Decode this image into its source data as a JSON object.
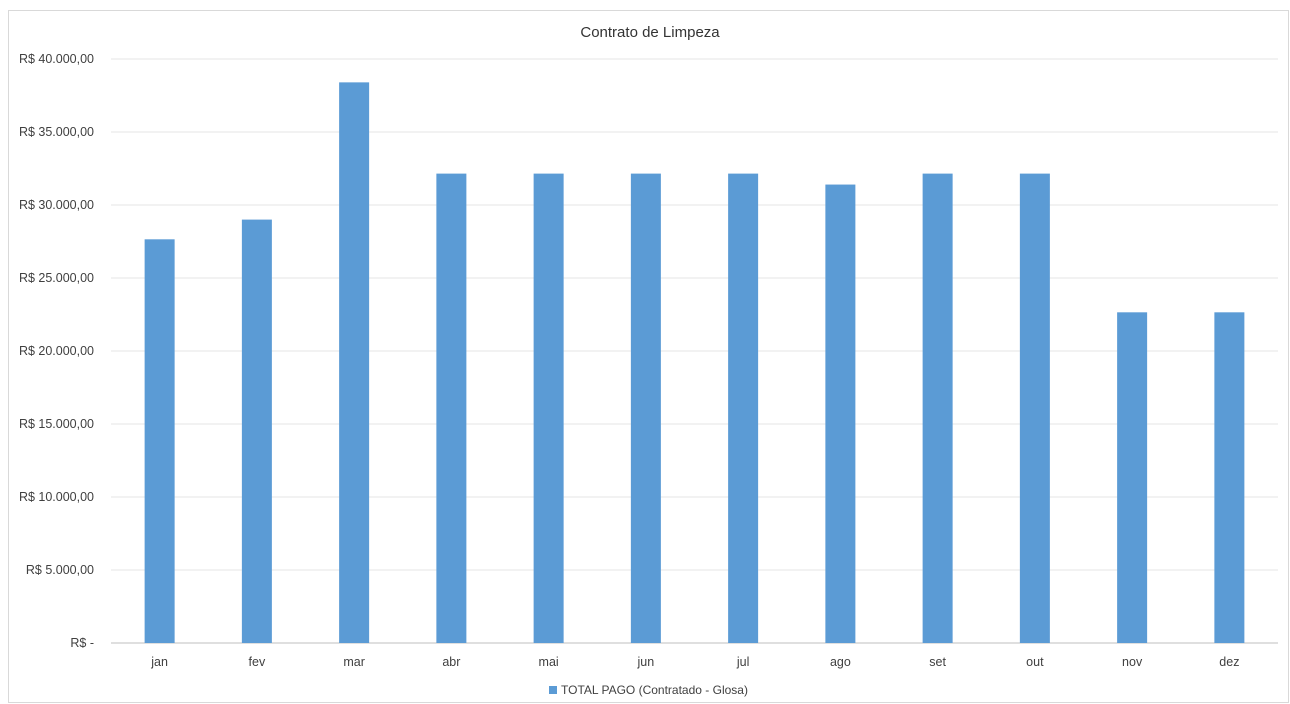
{
  "chart_data": {
    "type": "bar",
    "title": "Contrato de Limpeza",
    "xlabel": "",
    "ylabel": "",
    "categories": [
      "jan",
      "fev",
      "mar",
      "abr",
      "mai",
      "jun",
      "jul",
      "ago",
      "set",
      "out",
      "nov",
      "dez"
    ],
    "series": [
      {
        "name": "TOTAL PAGO (Contratado - Glosa)",
        "color": "#5b9bd5",
        "values": [
          27650,
          29000,
          38400,
          32150,
          32150,
          32150,
          32150,
          31400,
          32150,
          32150,
          22650,
          22650
        ]
      }
    ],
    "ylim": [
      0,
      40000
    ],
    "yticks": [
      0,
      5000,
      10000,
      15000,
      20000,
      25000,
      30000,
      35000,
      40000
    ],
    "ytick_labels": [
      "R$ -",
      "R$ 5.000,00",
      "R$ 10.000,00",
      "R$ 15.000,00",
      "R$ 20.000,00",
      "R$ 25.000,00",
      "R$ 30.000,00",
      "R$ 35.000,00",
      "R$ 40.000,00"
    ],
    "grid": true,
    "legend_position": "bottom",
    "gridline_color": "#e6e6e6",
    "axis_color": "#bfbfbf"
  }
}
